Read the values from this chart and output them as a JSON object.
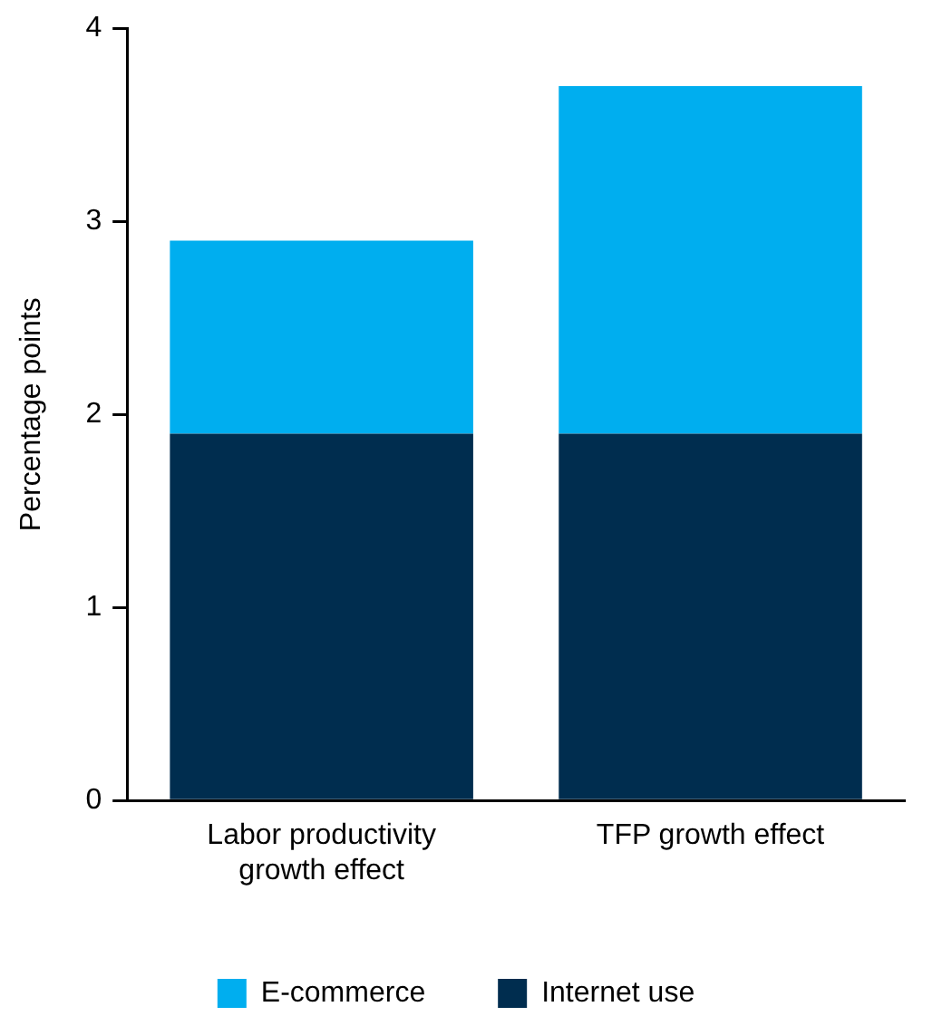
{
  "chart_data": {
    "type": "bar",
    "ylabel": "Percentage points",
    "categories": [
      "Labor productivity growth effect",
      "TFP growth effect"
    ],
    "stacked": true,
    "series": [
      {
        "name": "Internet use",
        "color": "#002d4f",
        "values": [
          1.9,
          1.9
        ]
      },
      {
        "name": "E-commerce",
        "color": "#00aeef",
        "values": [
          1.0,
          1.8
        ]
      }
    ],
    "ylim": [
      0,
      4
    ],
    "yticks": [
      0,
      1,
      2,
      3,
      4
    ],
    "grid": false,
    "legend": "bottom"
  }
}
